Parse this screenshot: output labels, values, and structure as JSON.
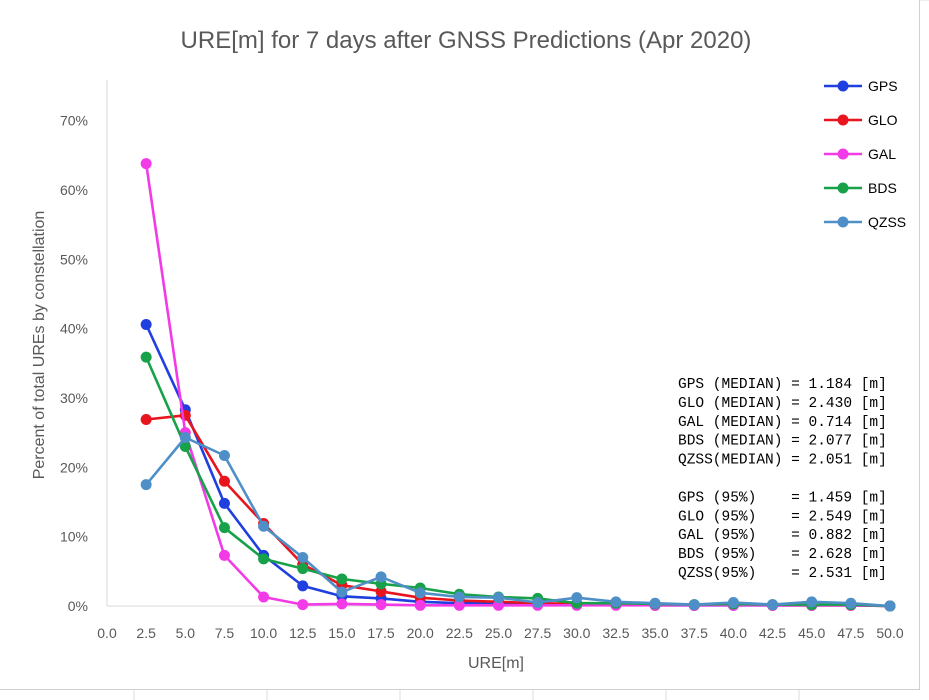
{
  "chart_data": {
    "type": "line",
    "title": "URE[m] for 7 days after GNSS Predictions (Apr 2020)",
    "xlabel": "URE[m]",
    "ylabel": "Percent of total UREs by constellation",
    "xlim": [
      0,
      50
    ],
    "ylim": [
      0,
      0.75
    ],
    "x_ticks": [
      "0.0",
      "2.5",
      "5.0",
      "7.5",
      "10.0",
      "12.5",
      "15.0",
      "17.5",
      "20.0",
      "22.5",
      "25.0",
      "27.5",
      "30.0",
      "32.5",
      "35.0",
      "37.5",
      "40.0",
      "42.5",
      "45.0",
      "47.5",
      "50.0"
    ],
    "y_ticks": [
      {
        "value": 0.0,
        "label": "0%"
      },
      {
        "value": 0.1,
        "label": "10%"
      },
      {
        "value": 0.2,
        "label": "20%"
      },
      {
        "value": 0.3,
        "label": "30%"
      },
      {
        "value": 0.4,
        "label": "40%"
      },
      {
        "value": 0.5,
        "label": "50%"
      },
      {
        "value": 0.6,
        "label": "60%"
      },
      {
        "value": 0.7,
        "label": "70%"
      }
    ],
    "grid": false,
    "legend_position": "top-right",
    "x": [
      2.5,
      5,
      7.5,
      10,
      12.5,
      15,
      17.5,
      20,
      22.5,
      25,
      27.5,
      30,
      32.5,
      35,
      37.5,
      40,
      42.5,
      45,
      47.5,
      50
    ],
    "series": [
      {
        "name": "GPS",
        "color": "#1F3FE0",
        "values": [
          0.406,
          0.283,
          0.148,
          0.073,
          0.029,
          0.014,
          0.011,
          0.006,
          0.004,
          0.004,
          0.003,
          0.002,
          0.002,
          0.001,
          0.001,
          0.001,
          0.001,
          0.001,
          0.001,
          0.0
        ]
      },
      {
        "name": "GLO",
        "color": "#E8141E",
        "values": [
          0.269,
          0.275,
          0.18,
          0.119,
          0.06,
          0.03,
          0.021,
          0.012,
          0.008,
          0.006,
          0.004,
          0.003,
          0.002,
          0.002,
          0.001,
          0.002,
          0.001,
          0.001,
          0.001,
          0.0
        ]
      },
      {
        "name": "GAL",
        "color": "#F23AE6",
        "values": [
          0.638,
          0.25,
          0.073,
          0.013,
          0.002,
          0.003,
          0.002,
          0.001,
          0.001,
          0.001,
          0.001,
          0.001,
          0.001,
          0.001,
          0.001,
          0.001,
          0.001,
          0.001,
          0.001,
          0.0
        ]
      },
      {
        "name": "BDS",
        "color": "#17A24A",
        "values": [
          0.359,
          0.23,
          0.113,
          0.068,
          0.054,
          0.039,
          0.032,
          0.026,
          0.017,
          0.013,
          0.011,
          0.004,
          0.004,
          0.003,
          0.002,
          0.003,
          0.002,
          0.002,
          0.002,
          0.0
        ]
      },
      {
        "name": "QZSS",
        "color": "#4F8FC8",
        "values": [
          0.175,
          0.243,
          0.217,
          0.115,
          0.07,
          0.02,
          0.042,
          0.019,
          0.013,
          0.012,
          0.005,
          0.012,
          0.006,
          0.004,
          0.002,
          0.005,
          0.002,
          0.006,
          0.004,
          0.0
        ]
      }
    ],
    "annotations": [
      "GPS (MEDIAN) = 1.184 [m]",
      "GLO (MEDIAN) = 2.430 [m]",
      "GAL (MEDIAN) = 0.714 [m]",
      "BDS (MEDIAN) = 2.077 [m]",
      "QZSS(MEDIAN) = 2.051 [m]",
      "",
      "GPS (95%)    = 1.459 [m]",
      "GLO (95%)    = 2.549 [m]",
      "GAL (95%)    = 0.882 [m]",
      "BDS (95%)    = 2.628 [m]",
      "QZSS(95%)    = 2.531 [m]"
    ]
  }
}
